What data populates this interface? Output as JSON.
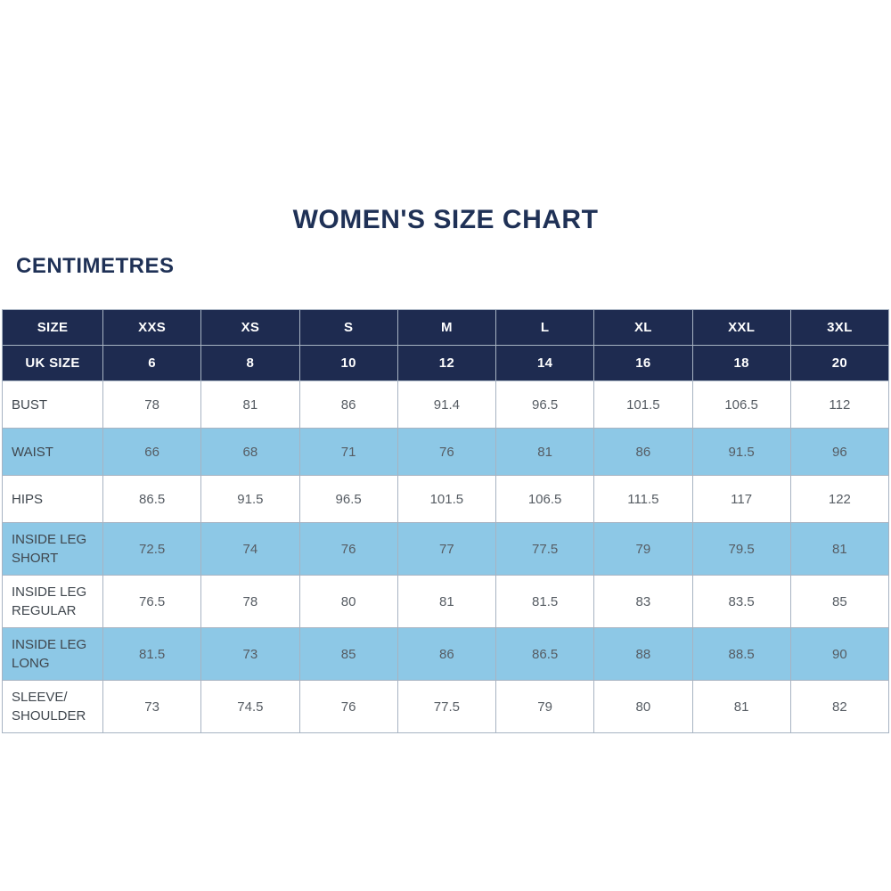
{
  "page": {
    "title": "WOMEN'S SIZE CHART",
    "units_label": "CENTIMETRES"
  },
  "colors": {
    "navy_header": "#1e2b50",
    "title_text": "#1f3156",
    "stripe_blue": "#8dc8e6",
    "border": "#a7b3c2",
    "data_text": "#565c63",
    "label_text": "#3f464d",
    "header_text": "#ffffff"
  },
  "chart_data": {
    "type": "table",
    "title": "WOMEN'S SIZE CHART",
    "units": "CENTIMETRES",
    "header_rows": [
      {
        "label": "SIZE",
        "values": [
          "XXS",
          "XS",
          "S",
          "M",
          "L",
          "XL",
          "XXL",
          "3XL"
        ]
      },
      {
        "label": "UK SIZE",
        "values": [
          "6",
          "8",
          "10",
          "12",
          "14",
          "16",
          "18",
          "20"
        ]
      }
    ],
    "rows": [
      {
        "label": "BUST",
        "values": [
          "78",
          "81",
          "86",
          "91.4",
          "96.5",
          "101.5",
          "106.5",
          "112"
        ]
      },
      {
        "label": "WAIST",
        "values": [
          "66",
          "68",
          "71",
          "76",
          "81",
          "86",
          "91.5",
          "96"
        ]
      },
      {
        "label": "HIPS",
        "values": [
          "86.5",
          "91.5",
          "96.5",
          "101.5",
          "106.5",
          "111.5",
          "117",
          "122"
        ]
      },
      {
        "label": "INSIDE LEG SHORT",
        "values": [
          "72.5",
          "74",
          "76",
          "77",
          "77.5",
          "79",
          "79.5",
          "81"
        ]
      },
      {
        "label": "INSIDE LEG REGULAR",
        "values": [
          "76.5",
          "78",
          "80",
          "81",
          "81.5",
          "83",
          "83.5",
          "85"
        ]
      },
      {
        "label": "INSIDE LEG LONG",
        "values": [
          "81.5",
          "73",
          "85",
          "86",
          "86.5",
          "88",
          "88.5",
          "90"
        ]
      },
      {
        "label": "SLEEVE/ SHOULDER",
        "values": [
          "73",
          "74.5",
          "76",
          "77.5",
          "79",
          "80",
          "81",
          "82"
        ]
      }
    ]
  }
}
